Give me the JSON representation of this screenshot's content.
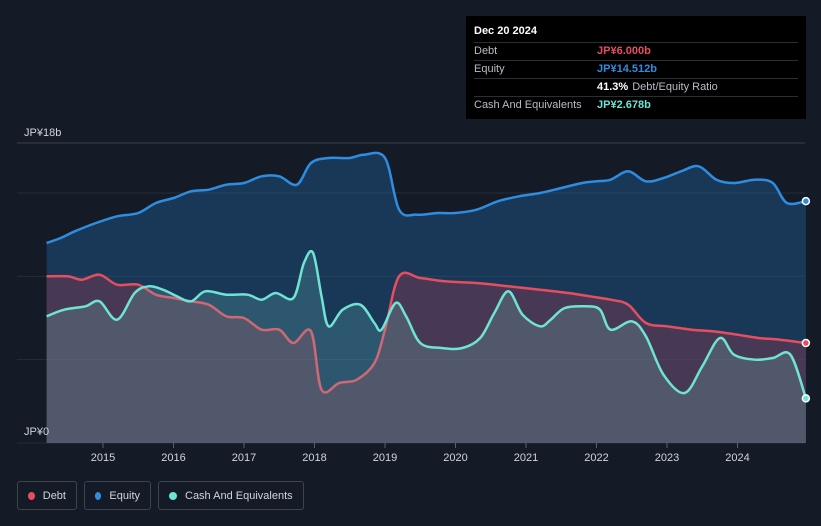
{
  "chart_data": {
    "type": "area",
    "currency_prefix": "JP¥",
    "y_axis": {
      "top_label": "JP¥18b",
      "bottom_label": "JP¥0",
      "ylim": [
        0,
        18
      ]
    },
    "x_axis": {
      "ticks": [
        2015,
        2016,
        2017,
        2018,
        2019,
        2020,
        2021,
        2022,
        2023,
        2024
      ],
      "xlim": [
        2014.2,
        2025.0
      ]
    },
    "grid": true,
    "series": [
      {
        "name": "Equity",
        "color": "#2e8de0",
        "points": [
          [
            2014.2,
            12.0
          ],
          [
            2014.4,
            12.3
          ],
          [
            2014.6,
            12.7
          ],
          [
            2014.9,
            13.2
          ],
          [
            2015.2,
            13.6
          ],
          [
            2015.5,
            13.8
          ],
          [
            2015.75,
            14.4
          ],
          [
            2016.0,
            14.7
          ],
          [
            2016.25,
            15.1
          ],
          [
            2016.5,
            15.2
          ],
          [
            2016.75,
            15.5
          ],
          [
            2017.0,
            15.6
          ],
          [
            2017.25,
            16.0
          ],
          [
            2017.5,
            16.0
          ],
          [
            2017.75,
            15.5
          ],
          [
            2017.95,
            16.8
          ],
          [
            2018.2,
            17.1
          ],
          [
            2018.5,
            17.1
          ],
          [
            2018.7,
            17.3
          ],
          [
            2019.0,
            17.1
          ],
          [
            2019.2,
            14.0
          ],
          [
            2019.45,
            13.7
          ],
          [
            2019.75,
            13.8
          ],
          [
            2020.0,
            13.8
          ],
          [
            2020.3,
            14.0
          ],
          [
            2020.6,
            14.5
          ],
          [
            2020.9,
            14.8
          ],
          [
            2021.2,
            15.0
          ],
          [
            2021.5,
            15.3
          ],
          [
            2021.8,
            15.6
          ],
          [
            2022.0,
            15.7
          ],
          [
            2022.2,
            15.8
          ],
          [
            2022.45,
            16.3
          ],
          [
            2022.7,
            15.7
          ],
          [
            2022.95,
            15.9
          ],
          [
            2023.2,
            16.3
          ],
          [
            2023.45,
            16.6
          ],
          [
            2023.7,
            15.8
          ],
          [
            2023.95,
            15.6
          ],
          [
            2024.25,
            15.8
          ],
          [
            2024.5,
            15.6
          ],
          [
            2024.7,
            14.4
          ],
          [
            2024.97,
            14.512
          ]
        ]
      },
      {
        "name": "Debt",
        "color": "#e64e5f",
        "points": [
          [
            2014.2,
            10.0
          ],
          [
            2014.5,
            10.0
          ],
          [
            2014.7,
            9.8
          ],
          [
            2014.95,
            10.1
          ],
          [
            2015.2,
            9.5
          ],
          [
            2015.5,
            9.5
          ],
          [
            2015.75,
            8.9
          ],
          [
            2016.0,
            8.7
          ],
          [
            2016.25,
            8.5
          ],
          [
            2016.5,
            8.3
          ],
          [
            2016.75,
            7.6
          ],
          [
            2017.0,
            7.5
          ],
          [
            2017.25,
            6.8
          ],
          [
            2017.5,
            6.8
          ],
          [
            2017.7,
            6.0
          ],
          [
            2017.95,
            6.7
          ],
          [
            2018.1,
            3.2
          ],
          [
            2018.35,
            3.6
          ],
          [
            2018.6,
            3.8
          ],
          [
            2018.85,
            4.8
          ],
          [
            2019.0,
            6.8
          ],
          [
            2019.2,
            10.0
          ],
          [
            2019.5,
            9.9
          ],
          [
            2019.85,
            9.7
          ],
          [
            2020.3,
            9.6
          ],
          [
            2020.75,
            9.4
          ],
          [
            2021.2,
            9.2
          ],
          [
            2021.6,
            9.0
          ],
          [
            2021.9,
            8.8
          ],
          [
            2022.2,
            8.6
          ],
          [
            2022.45,
            8.3
          ],
          [
            2022.7,
            7.2
          ],
          [
            2023.0,
            7.0
          ],
          [
            2023.35,
            6.8
          ],
          [
            2023.65,
            6.7
          ],
          [
            2024.0,
            6.5
          ],
          [
            2024.3,
            6.3
          ],
          [
            2024.6,
            6.2
          ],
          [
            2024.97,
            6.0
          ]
        ]
      },
      {
        "name": "Cash And Equivalents",
        "color": "#6fe3d4",
        "points": [
          [
            2014.2,
            7.6
          ],
          [
            2014.45,
            8.0
          ],
          [
            2014.75,
            8.2
          ],
          [
            2014.95,
            8.5
          ],
          [
            2015.2,
            7.4
          ],
          [
            2015.45,
            9.0
          ],
          [
            2015.65,
            9.4
          ],
          [
            2015.85,
            9.2
          ],
          [
            2016.05,
            8.8
          ],
          [
            2016.25,
            8.5
          ],
          [
            2016.45,
            9.1
          ],
          [
            2016.75,
            8.9
          ],
          [
            2017.05,
            8.9
          ],
          [
            2017.25,
            8.6
          ],
          [
            2017.45,
            9.0
          ],
          [
            2017.7,
            8.7
          ],
          [
            2017.85,
            10.8
          ],
          [
            2017.98,
            11.4
          ],
          [
            2018.1,
            8.8
          ],
          [
            2018.2,
            7.0
          ],
          [
            2018.4,
            8.0
          ],
          [
            2018.65,
            8.3
          ],
          [
            2018.85,
            7.2
          ],
          [
            2018.95,
            6.8
          ],
          [
            2019.15,
            8.4
          ],
          [
            2019.3,
            7.6
          ],
          [
            2019.5,
            6.0
          ],
          [
            2019.8,
            5.7
          ],
          [
            2020.1,
            5.7
          ],
          [
            2020.35,
            6.3
          ],
          [
            2020.55,
            7.8
          ],
          [
            2020.75,
            9.1
          ],
          [
            2020.95,
            7.7
          ],
          [
            2021.2,
            7.0
          ],
          [
            2021.35,
            7.4
          ],
          [
            2021.55,
            8.1
          ],
          [
            2021.85,
            8.2
          ],
          [
            2022.05,
            8.0
          ],
          [
            2022.2,
            6.8
          ],
          [
            2022.5,
            7.3
          ],
          [
            2022.7,
            6.4
          ],
          [
            2022.95,
            4.1
          ],
          [
            2023.25,
            3.0
          ],
          [
            2023.5,
            4.6
          ],
          [
            2023.75,
            6.3
          ],
          [
            2023.95,
            5.3
          ],
          [
            2024.25,
            5.0
          ],
          [
            2024.5,
            5.1
          ],
          [
            2024.75,
            5.3
          ],
          [
            2024.97,
            2.678
          ]
        ]
      }
    ]
  },
  "tooltip": {
    "date": "Dec 20 2024",
    "rows": [
      {
        "label": "Debt",
        "value": "JP¥6.000b",
        "color": "#e64e5f"
      },
      {
        "label": "Equity",
        "value": "JP¥14.512b",
        "color": "#2e8de0"
      },
      {
        "label": "",
        "value": "41.3%",
        "color": "#ffffff",
        "extra": "Debt/Equity Ratio"
      },
      {
        "label": "Cash And Equivalents",
        "value": "JP¥2.678b",
        "color": "#6fe3d4"
      }
    ]
  },
  "legend": {
    "items": [
      {
        "label": "Debt",
        "color": "#e64e5f"
      },
      {
        "label": "Equity",
        "color": "#2e8de0"
      },
      {
        "label": "Cash And Equivalents",
        "color": "#6fe3d4"
      }
    ]
  }
}
